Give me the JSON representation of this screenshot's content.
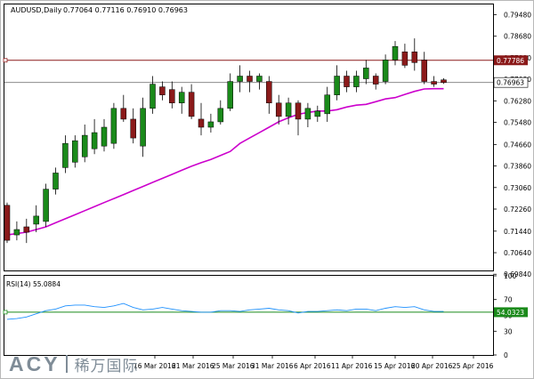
{
  "header": {
    "symbol": "AUDUSD,Daily",
    "ohlc": "0.77064 0.77116 0.76910 0.76963"
  },
  "indicator": {
    "label": "RSI(14) 55.0884"
  },
  "watermark": {
    "brand": "ACY",
    "chinese": "稀万国际"
  },
  "colors": {
    "bull": "#1a8a1a",
    "bear": "#8b1a1a",
    "ma": "#cc00cc",
    "rsi": "#1e90ff",
    "level_line": "#8b1a1a",
    "rsi_level": "#1a8a1a",
    "hline": "#7a7a7a"
  },
  "chart_data": [
    {
      "type": "candlestick",
      "title": "AUDUSD,Daily",
      "ylim": [
        0.6998,
        0.7986
      ],
      "y_ticks": [
        "0.79480",
        "0.78680",
        "0.77880",
        "0.77080",
        "0.76280",
        "0.75480",
        "0.74660",
        "0.73860",
        "0.73060",
        "0.72260",
        "0.71440",
        "0.70640",
        "0.69840"
      ],
      "x_labels": [
        "16 Mar 2016",
        "21 Mar 2016",
        "25 Mar 2016",
        "31 Mar 2016",
        "6 Apr 2016",
        "11 Apr 2016",
        "15 Apr 2016",
        "20 Apr 2016",
        "25 Apr 2016"
      ],
      "levels": [
        {
          "value": 0.77786,
          "label": "0.77786",
          "style": "line"
        },
        {
          "value": 0.76963,
          "label": "0.76963",
          "style": "price"
        }
      ],
      "candles": [
        {
          "o": 0.724,
          "h": 0.725,
          "c": 0.711,
          "l": 0.71
        },
        {
          "o": 0.713,
          "h": 0.718,
          "c": 0.715,
          "l": 0.711
        },
        {
          "o": 0.716,
          "h": 0.719,
          "c": 0.714,
          "l": 0.71
        },
        {
          "o": 0.717,
          "h": 0.724,
          "c": 0.72,
          "l": 0.714
        },
        {
          "o": 0.718,
          "h": 0.732,
          "c": 0.73,
          "l": 0.716
        },
        {
          "o": 0.73,
          "h": 0.738,
          "c": 0.736,
          "l": 0.728
        },
        {
          "o": 0.738,
          "h": 0.75,
          "c": 0.747,
          "l": 0.736
        },
        {
          "o": 0.74,
          "h": 0.75,
          "c": 0.748,
          "l": 0.738
        },
        {
          "o": 0.742,
          "h": 0.754,
          "c": 0.75,
          "l": 0.74
        },
        {
          "o": 0.745,
          "h": 0.756,
          "c": 0.751,
          "l": 0.743
        },
        {
          "o": 0.746,
          "h": 0.756,
          "c": 0.753,
          "l": 0.744
        },
        {
          "o": 0.747,
          "h": 0.762,
          "c": 0.76,
          "l": 0.745
        },
        {
          "o": 0.76,
          "h": 0.765,
          "c": 0.756,
          "l": 0.755
        },
        {
          "o": 0.756,
          "h": 0.76,
          "c": 0.749,
          "l": 0.747
        },
        {
          "o": 0.746,
          "h": 0.764,
          "c": 0.76,
          "l": 0.742
        },
        {
          "o": 0.76,
          "h": 0.772,
          "c": 0.769,
          "l": 0.758
        },
        {
          "o": 0.768,
          "h": 0.77,
          "c": 0.765,
          "l": 0.763
        },
        {
          "o": 0.767,
          "h": 0.77,
          "c": 0.762,
          "l": 0.76
        },
        {
          "o": 0.762,
          "h": 0.768,
          "c": 0.766,
          "l": 0.758
        },
        {
          "o": 0.766,
          "h": 0.769,
          "c": 0.757,
          "l": 0.756
        },
        {
          "o": 0.756,
          "h": 0.762,
          "c": 0.753,
          "l": 0.75
        },
        {
          "o": 0.753,
          "h": 0.758,
          "c": 0.755,
          "l": 0.751
        },
        {
          "o": 0.755,
          "h": 0.763,
          "c": 0.76,
          "l": 0.754
        },
        {
          "o": 0.76,
          "h": 0.773,
          "c": 0.77,
          "l": 0.759
        },
        {
          "o": 0.77,
          "h": 0.776,
          "c": 0.772,
          "l": 0.766
        },
        {
          "o": 0.772,
          "h": 0.774,
          "c": 0.77,
          "l": 0.766
        },
        {
          "o": 0.77,
          "h": 0.773,
          "c": 0.772,
          "l": 0.767
        },
        {
          "o": 0.77,
          "h": 0.772,
          "c": 0.762,
          "l": 0.758
        },
        {
          "o": 0.762,
          "h": 0.765,
          "c": 0.757,
          "l": 0.754
        },
        {
          "o": 0.757,
          "h": 0.764,
          "c": 0.762,
          "l": 0.754
        },
        {
          "o": 0.762,
          "h": 0.763,
          "c": 0.756,
          "l": 0.75
        },
        {
          "o": 0.756,
          "h": 0.762,
          "c": 0.76,
          "l": 0.753
        },
        {
          "o": 0.757,
          "h": 0.761,
          "c": 0.759,
          "l": 0.755
        },
        {
          "o": 0.758,
          "h": 0.768,
          "c": 0.765,
          "l": 0.755
        },
        {
          "o": 0.765,
          "h": 0.776,
          "c": 0.772,
          "l": 0.763
        },
        {
          "o": 0.772,
          "h": 0.774,
          "c": 0.768,
          "l": 0.766
        },
        {
          "o": 0.768,
          "h": 0.774,
          "c": 0.772,
          "l": 0.766
        },
        {
          "o": 0.771,
          "h": 0.778,
          "c": 0.775,
          "l": 0.769
        },
        {
          "o": 0.772,
          "h": 0.773,
          "c": 0.769,
          "l": 0.767
        },
        {
          "o": 0.77,
          "h": 0.78,
          "c": 0.778,
          "l": 0.769
        },
        {
          "o": 0.778,
          "h": 0.785,
          "c": 0.783,
          "l": 0.776
        },
        {
          "o": 0.781,
          "h": 0.784,
          "c": 0.776,
          "l": 0.775
        },
        {
          "o": 0.781,
          "h": 0.786,
          "c": 0.777,
          "l": 0.774
        },
        {
          "o": 0.778,
          "h": 0.781,
          "c": 0.77,
          "l": 0.769
        },
        {
          "o": 0.77,
          "h": 0.772,
          "c": 0.769,
          "l": 0.768
        },
        {
          "o": 0.7706,
          "h": 0.7712,
          "c": 0.7696,
          "l": 0.7691
        }
      ],
      "ma": [
        0.713,
        0.7135,
        0.714,
        0.715,
        0.716,
        0.7175,
        0.719,
        0.7205,
        0.722,
        0.7235,
        0.725,
        0.7265,
        0.728,
        0.7295,
        0.731,
        0.7325,
        0.734,
        0.7355,
        0.737,
        0.7385,
        0.7398,
        0.741,
        0.7425,
        0.744,
        0.747,
        0.749,
        0.751,
        0.753,
        0.755,
        0.7565,
        0.7578,
        0.7585,
        0.759,
        0.759,
        0.7595,
        0.7605,
        0.7612,
        0.7615,
        0.7625,
        0.7635,
        0.764,
        0.7652,
        0.7663,
        0.7672,
        0.7673,
        0.7673
      ]
    },
    {
      "type": "line",
      "title": "RSI(14) 55.0884",
      "ylim": [
        0,
        100
      ],
      "y_ticks": [
        "100",
        "70",
        "50",
        "30",
        "0"
      ],
      "levels": [
        {
          "value": 54.0323,
          "label": "54.0323"
        }
      ],
      "values": [
        45,
        46,
        48,
        52,
        56,
        58,
        62,
        63,
        63,
        61,
        60,
        62,
        65,
        60,
        57,
        58,
        60,
        58,
        56,
        55,
        54,
        54,
        56,
        56,
        55,
        57,
        58,
        59,
        57,
        56,
        53,
        55,
        55,
        56,
        57,
        56,
        58,
        58,
        56,
        59,
        61,
        60,
        61,
        57,
        55,
        55
      ]
    }
  ]
}
